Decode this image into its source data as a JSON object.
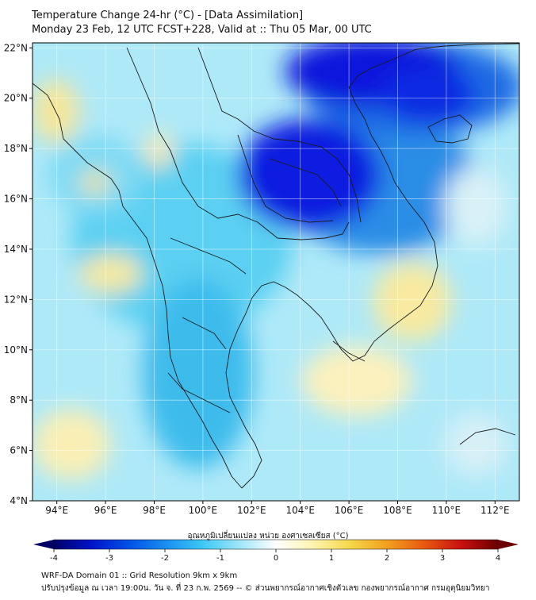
{
  "header": {
    "title_line1": "Temperature Change 24-hr (°C) - [Data Assimilation]",
    "title_line2": "Monday 23 Feb, 12 UTC FCST+228, Valid at :: Thu 05 Mar, 00 UTC"
  },
  "map": {
    "lat_labels": [
      "22°N",
      "20°N",
      "18°N",
      "16°N",
      "14°N",
      "12°N",
      "10°N",
      "8°N",
      "6°N",
      "4°N"
    ],
    "lon_labels": [
      "94°E",
      "96°E",
      "98°E",
      "100°E",
      "102°E",
      "104°E",
      "106°E",
      "108°E",
      "110°E",
      "112°E"
    ],
    "lat_values": [
      22,
      20,
      18,
      16,
      14,
      12,
      10,
      8,
      6,
      4
    ],
    "lon_values": [
      94,
      96,
      98,
      100,
      102,
      104,
      106,
      108,
      110,
      112
    ],
    "lon_range": [
      93,
      113
    ],
    "lat_range": [
      4,
      22.2
    ],
    "palette": {
      "deep_blue": "#0a1adf",
      "mid_blue": "#1e78e8",
      "cyan": "#3dc4f0",
      "light_cyan": "#8fe0f6",
      "pale": "#dff5fb",
      "pale_yellow": "#fbf3b8",
      "yellow": "#f7e27a",
      "land_line": "#1a1a1a"
    }
  },
  "colorbar": {
    "title": "อุณหภูมิเปลี่ยนแปลง หน่วย องศาเซลเซียส (°C)",
    "ticks": [
      "-4",
      "-3",
      "-2",
      "-1",
      "0",
      "1",
      "2",
      "3",
      "4"
    ],
    "tick_values": [
      -4,
      -3,
      -2,
      -1,
      0,
      1,
      2,
      3,
      4
    ],
    "colors": [
      "#000066",
      "#0014c8",
      "#0050e6",
      "#1a8cf0",
      "#3cc8f5",
      "#9ce6f8",
      "#ffffff",
      "#fff4b0",
      "#f6d84a",
      "#f2a020",
      "#e85a10",
      "#c81010",
      "#6a0000"
    ]
  },
  "footer": {
    "line1": "WRF-DA Domain 01 :: Grid Resolution 9km x 9km",
    "line2": "ปรับปรุงข้อมูล ณ เวลา 19:00น. วัน จ. ที่ 23 ก.พ. 2569 -- © ส่วนพยากรณ์อากาศเชิงตัวเลข กองพยากรณ์อากาศ กรมอุตุนิยมวิทยา"
  }
}
